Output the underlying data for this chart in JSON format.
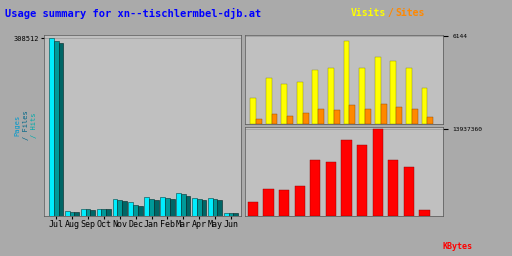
{
  "title": "Usage summary for xn--tischlermbel-djb.at",
  "title_color": "#0000ff",
  "months": [
    "Jul",
    "Aug",
    "Sep",
    "Oct",
    "Nov",
    "Dec",
    "Jan",
    "Feb",
    "Mar",
    "Apr",
    "May",
    "Jun"
  ],
  "main_hits": [
    308512,
    8500,
    13000,
    13500,
    30000,
    24000,
    34000,
    34000,
    40000,
    32000,
    32000,
    6500
  ],
  "main_files": [
    304000,
    8000,
    12000,
    12500,
    28000,
    20000,
    30000,
    32000,
    38000,
    30000,
    30000,
    6000
  ],
  "main_pages": [
    300000,
    7500,
    11500,
    12000,
    27000,
    18000,
    28000,
    30000,
    36000,
    28000,
    28000,
    5500
  ],
  "main_ytick": 308512,
  "visits_yellow": [
    1800,
    3200,
    2800,
    2900,
    3800,
    3900,
    5800,
    3900,
    4700,
    4400,
    3900,
    2500
  ],
  "visits_orange": [
    350,
    650,
    550,
    750,
    1000,
    950,
    1300,
    1050,
    1400,
    1150,
    1050,
    450
  ],
  "visits_ytick": 6144,
  "kb_vals": [
    2200,
    4200,
    4000,
    4600,
    8500,
    8200,
    11500,
    10800,
    13200,
    8500,
    7500,
    900
  ],
  "kbytes_ytick": "13937360",
  "bg_color": "#aaaaaa",
  "plot_bg": "#c0c0c0",
  "bar_cyan": "#00eeff",
  "bar_teal": "#009999",
  "bar_darkteal": "#006666",
  "bar_yellow": "#ffff00",
  "bar_orange": "#ff8800",
  "bar_red": "#ff0000"
}
